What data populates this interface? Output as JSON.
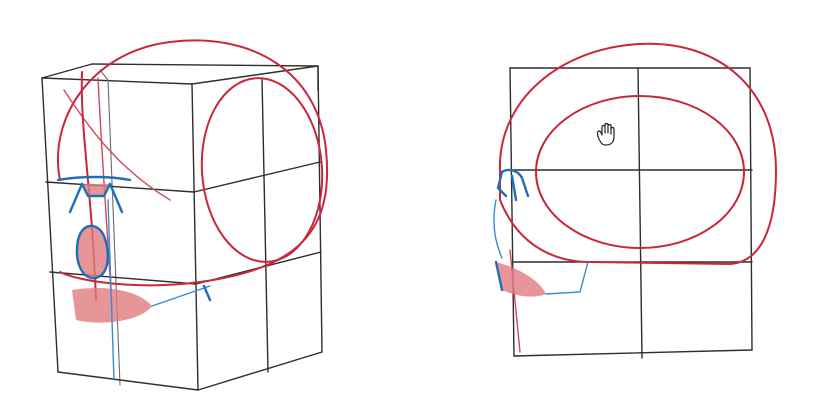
{
  "scene": {
    "subject": "skull-construction-sketch",
    "views": [
      {
        "id": "three-quarter-view"
      },
      {
        "id": "side-view"
      }
    ],
    "cursor": {
      "icon": "hand-grab-icon"
    },
    "colors": {
      "paper": "#ffffff",
      "pencil": "#2e2e2e",
      "red_pencil": "#c8283c",
      "blue_pencil": "#1f6fb6",
      "fill_red": "#e07a80"
    }
  }
}
